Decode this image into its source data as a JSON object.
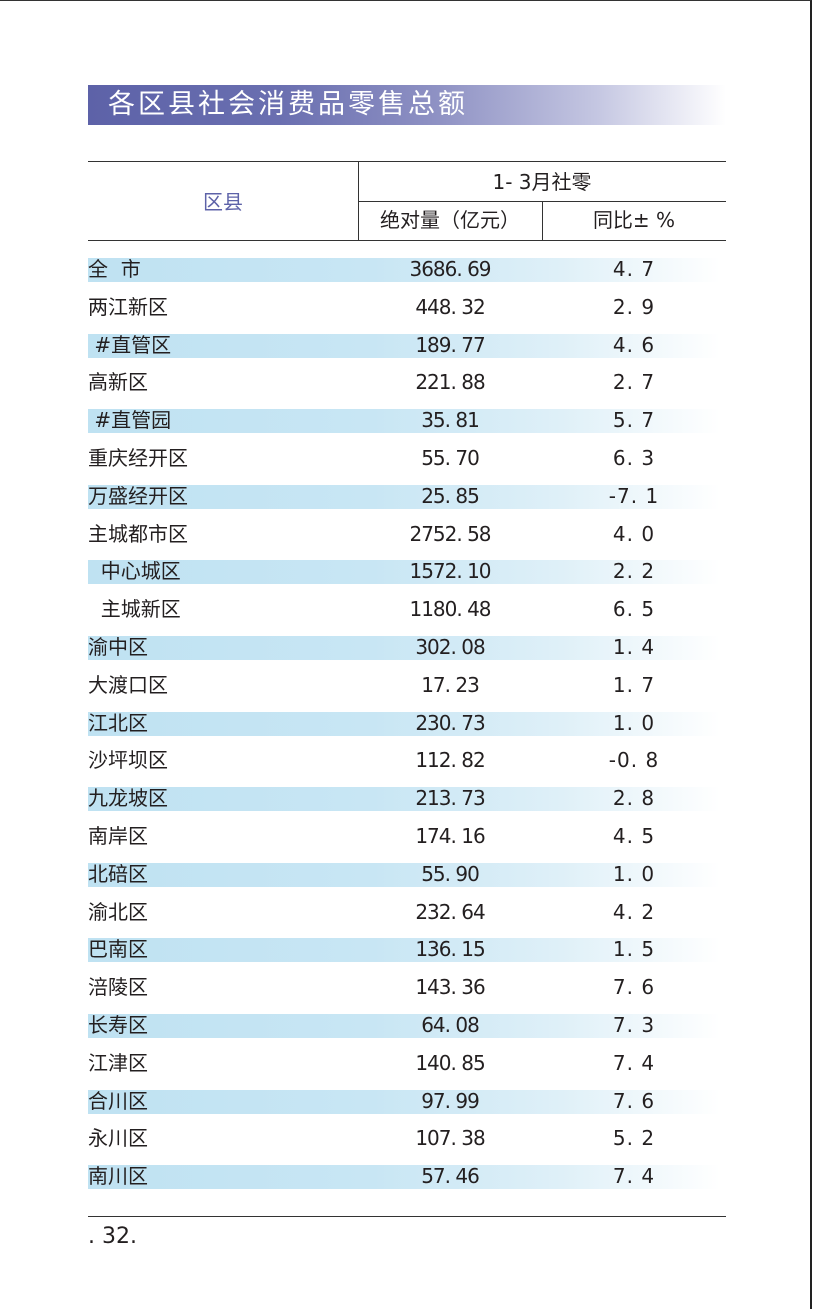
{
  "title": "各区县社会消费品零售总额",
  "header": {
    "district": "区县",
    "group": "1- 3月社零",
    "abs": "绝对量（亿元）",
    "yoy": "同比± %"
  },
  "rows": [
    {
      "name": "全  市",
      "abs": "3686. 69",
      "yoy": "4. 7",
      "shaded": true
    },
    {
      "name": "两江新区",
      "abs": "448. 32",
      "yoy": "2. 9",
      "shaded": false
    },
    {
      "name": " #直管区",
      "abs": "189. 77",
      "yoy": "4. 6",
      "shaded": true
    },
    {
      "name": "高新区",
      "abs": "221. 88",
      "yoy": "2. 7",
      "shaded": false
    },
    {
      "name": " #直管园",
      "abs": "35. 81",
      "yoy": "5. 7",
      "shaded": true
    },
    {
      "name": "重庆经开区",
      "abs": "55. 70",
      "yoy": "6. 3",
      "shaded": false
    },
    {
      "name": "万盛经开区",
      "abs": "25. 85",
      "yoy": "-7. 1",
      "shaded": true
    },
    {
      "name": "主城都市区",
      "abs": "2752. 58",
      "yoy": "4. 0",
      "shaded": false
    },
    {
      "name": "  中心城区",
      "abs": "1572. 10",
      "yoy": "2. 2",
      "shaded": true
    },
    {
      "name": "  主城新区",
      "abs": "1180. 48",
      "yoy": "6. 5",
      "shaded": false
    },
    {
      "name": "渝中区",
      "abs": "302. 08",
      "yoy": "1. 4",
      "shaded": true
    },
    {
      "name": "大渡口区",
      "abs": "17. 23",
      "yoy": "1. 7",
      "shaded": false
    },
    {
      "name": "江北区",
      "abs": "230. 73",
      "yoy": "1. 0",
      "shaded": true
    },
    {
      "name": "沙坪坝区",
      "abs": "112. 82",
      "yoy": "-0. 8",
      "shaded": false
    },
    {
      "name": "九龙坡区",
      "abs": "213. 73",
      "yoy": "2. 8",
      "shaded": true
    },
    {
      "name": "南岸区",
      "abs": "174. 16",
      "yoy": "4. 5",
      "shaded": false
    },
    {
      "name": "北碚区",
      "abs": "55. 90",
      "yoy": "1. 0",
      "shaded": true
    },
    {
      "name": "渝北区",
      "abs": "232. 64",
      "yoy": "4. 2",
      "shaded": false
    },
    {
      "name": "巴南区",
      "abs": "136. 15",
      "yoy": "1. 5",
      "shaded": true
    },
    {
      "name": "涪陵区",
      "abs": "143. 36",
      "yoy": "7. 6",
      "shaded": false
    },
    {
      "name": "长寿区",
      "abs": "64. 08",
      "yoy": "7. 3",
      "shaded": true
    },
    {
      "name": "江津区",
      "abs": "140. 85",
      "yoy": "7. 4",
      "shaded": false
    },
    {
      "name": "合川区",
      "abs": "97. 99",
      "yoy": "7. 6",
      "shaded": true
    },
    {
      "name": "永川区",
      "abs": "107. 38",
      "yoy": "5. 2",
      "shaded": false
    },
    {
      "name": "南川区",
      "abs": "57. 46",
      "yoy": "7. 4",
      "shaded": true
    }
  ],
  "page_number": ". 32."
}
